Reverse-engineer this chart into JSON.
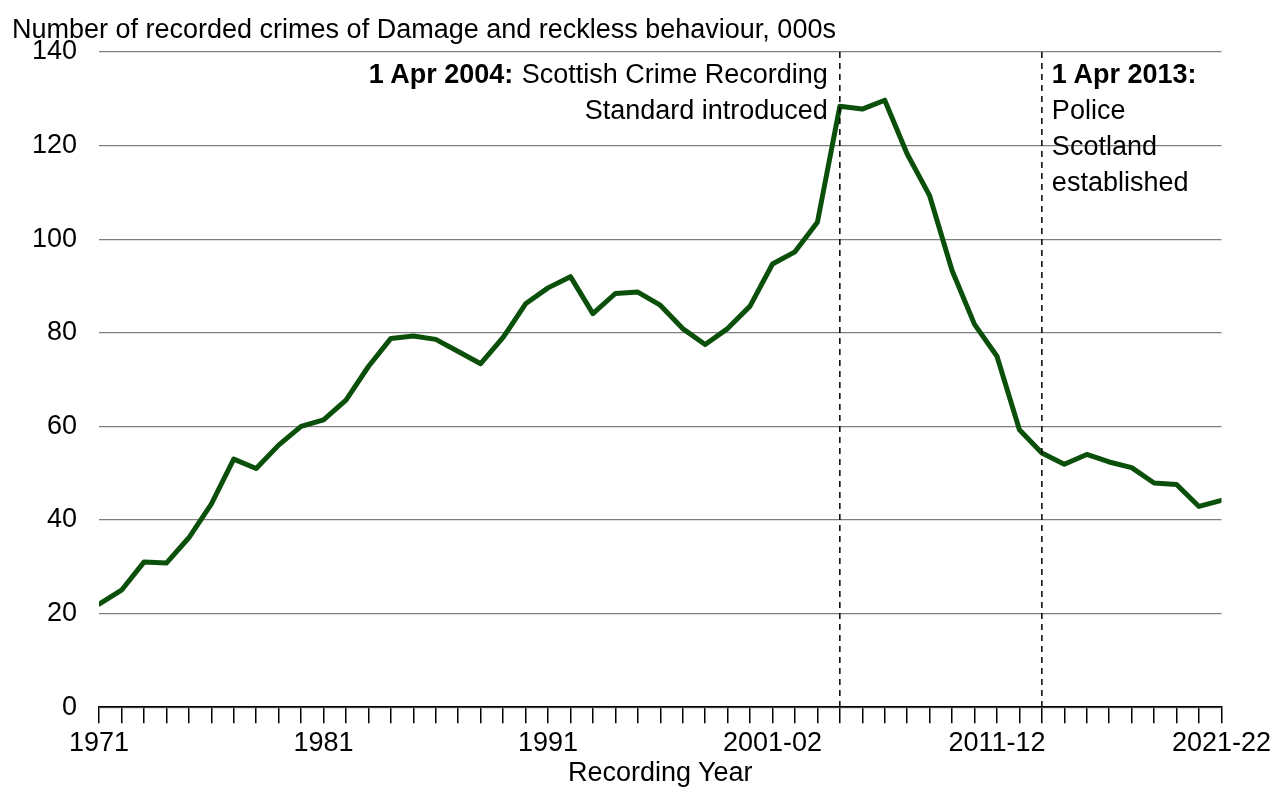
{
  "chart_data": {
    "type": "line",
    "ylabel": "Number of recorded crimes of Damage and reckless behaviour, 000s",
    "xlabel": "Recording Year",
    "x": [
      1971,
      1972,
      1973,
      1974,
      1975,
      1976,
      1977,
      1978,
      1979,
      1980,
      1981,
      1982,
      1983,
      1984,
      1985,
      1986,
      1987,
      1988,
      1989,
      1990,
      1991,
      1992,
      1993,
      1994,
      1995,
      1996,
      1997,
      1998,
      1999,
      2000,
      2001,
      2002,
      2003,
      2004,
      2005,
      2006,
      2007,
      2008,
      2009,
      2010,
      2011,
      2012,
      2013,
      2014,
      2015,
      2016,
      2017,
      2018,
      2019,
      2020,
      2021
    ],
    "series": [
      {
        "color": "#0a500a",
        "values": [
          22,
          25,
          31,
          30.8,
          36.2,
          43.4,
          53,
          51,
          56,
          60,
          61.4,
          65.6,
          72.8,
          78.8,
          79.3,
          78.6,
          76,
          73.4,
          79,
          86.2,
          89.6,
          92,
          84.1,
          88.4,
          88.7,
          85.9,
          80.9,
          77.5,
          80.9,
          85.7,
          94.7,
          97.3,
          103.6,
          128.4,
          127.8,
          129.7,
          118.2,
          109.3,
          93.3,
          81.8,
          75,
          59.3,
          54.3,
          51.9,
          54,
          52.4,
          51.2,
          47.9,
          47.6,
          42.9,
          44.2
        ]
      }
    ],
    "xlim": [
      1971,
      2021
    ],
    "xticks": [
      1971,
      {
        "value": 1972,
        "label": null
      },
      {
        "value": 1973,
        "label": null
      },
      {
        "value": 1974,
        "label": null
      },
      {
        "value": 1975,
        "label": null
      },
      {
        "value": 1976,
        "label": null
      },
      {
        "value": 1977,
        "label": null
      },
      {
        "value": 1978,
        "label": null
      },
      {
        "value": 1979,
        "label": null
      },
      {
        "value": 1980,
        "label": null
      },
      1981,
      {
        "value": 1982,
        "label": null
      },
      {
        "value": 1983,
        "label": null
      },
      {
        "value": 1984,
        "label": null
      },
      {
        "value": 1985,
        "label": null
      },
      {
        "value": 1986,
        "label": null
      },
      {
        "value": 1987,
        "label": null
      },
      {
        "value": 1988,
        "label": null
      },
      {
        "value": 1989,
        "label": null
      },
      {
        "value": 1990,
        "label": null
      },
      1991,
      {
        "value": 1992,
        "label": null
      },
      {
        "value": 1993,
        "label": null
      },
      {
        "value": 1994,
        "label": null
      },
      {
        "value": 1995,
        "label": null
      },
      {
        "value": 1996,
        "label": null
      },
      {
        "value": 1997,
        "label": null
      },
      {
        "value": 1998,
        "label": null
      },
      {
        "value": 1999,
        "label": null
      },
      {
        "value": 2000,
        "label": null
      },
      {
        "value": 2001,
        "label": "2001-02"
      },
      {
        "value": 2002,
        "label": null
      },
      {
        "value": 2003,
        "label": null
      },
      {
        "value": 2004,
        "label": null
      },
      {
        "value": 2005,
        "label": null
      },
      {
        "value": 2006,
        "label": null
      },
      {
        "value": 2007,
        "label": null
      },
      {
        "value": 2008,
        "label": null
      },
      {
        "value": 2009,
        "label": null
      },
      {
        "value": 2010,
        "label": null
      },
      {
        "value": 2011,
        "label": "2011-12"
      },
      {
        "value": 2012,
        "label": null
      },
      {
        "value": 2013,
        "label": null
      },
      {
        "value": 2014,
        "label": null
      },
      {
        "value": 2015,
        "label": null
      },
      {
        "value": 2016,
        "label": null
      },
      {
        "value": 2017,
        "label": null
      },
      {
        "value": 2018,
        "label": null
      },
      {
        "value": 2019,
        "label": null
      },
      {
        "value": 2020,
        "label": null
      },
      {
        "value": 2021,
        "label": "2021-22"
      }
    ],
    "ylim": [
      0,
      140
    ],
    "yticks": [
      0,
      20,
      40,
      60,
      80,
      100,
      120,
      140
    ],
    "grid": "y",
    "legend": false,
    "marker": "none",
    "line_style": "solid",
    "ref_lines": [
      {
        "axis": "x",
        "value": 2004,
        "label": "1 Apr 2004: Scottish Crime Recording Standard introduced",
        "line_style": "dashed",
        "color": "#000000"
      },
      {
        "axis": "x",
        "value": 2013,
        "label": "1 Apr 2013: Police Scotland established",
        "line_style": "dashed",
        "color": "#000000"
      }
    ]
  }
}
